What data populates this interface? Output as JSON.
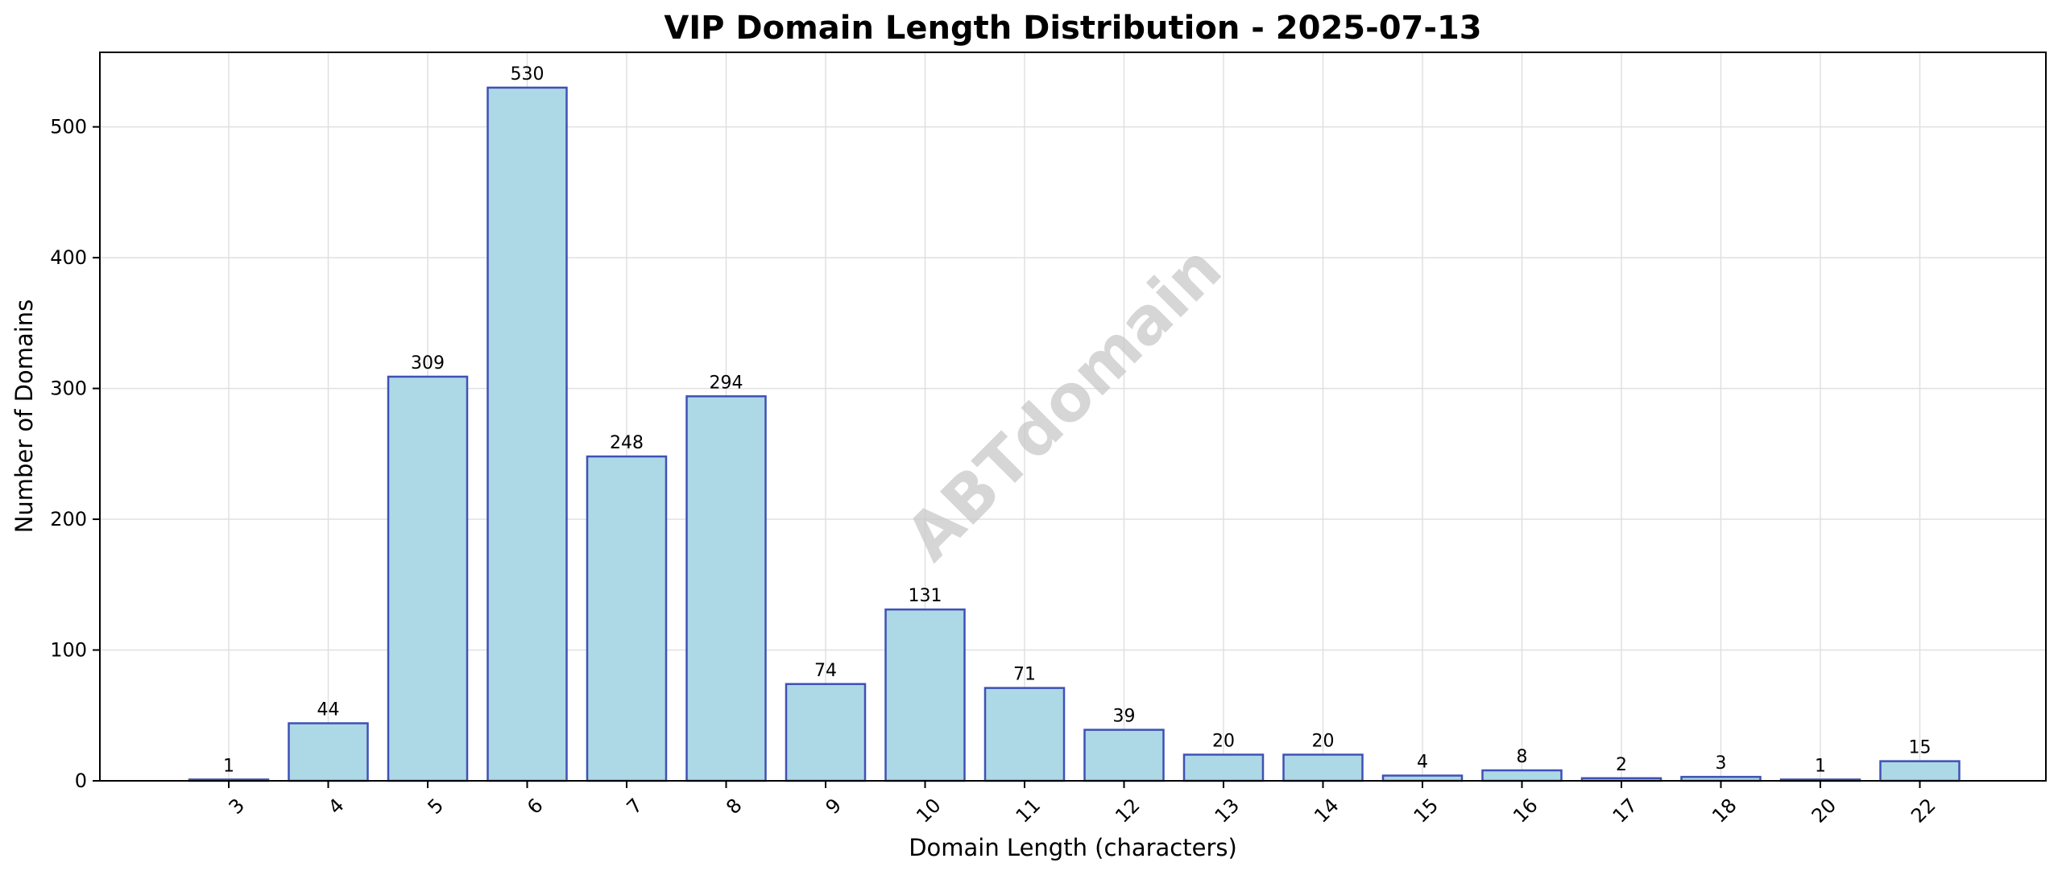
{
  "chart_data": {
    "type": "bar",
    "title": "VIP Domain Length Distribution - 2025-07-13",
    "xlabel": "Domain Length (characters)",
    "ylabel": "Number of Domains",
    "categories": [
      "3",
      "4",
      "5",
      "6",
      "7",
      "8",
      "9",
      "10",
      "11",
      "12",
      "13",
      "14",
      "15",
      "16",
      "17",
      "18",
      "20",
      "22"
    ],
    "values": [
      1,
      44,
      309,
      530,
      248,
      294,
      74,
      131,
      71,
      39,
      20,
      20,
      4,
      8,
      2,
      3,
      1,
      15
    ],
    "ylim": [
      0,
      557
    ],
    "yticks": [
      0,
      100,
      200,
      300,
      400,
      500
    ],
    "grid": true,
    "legend": "none",
    "watermark": "ABTdomain",
    "colors": {
      "bar_fill": "#add8e6",
      "bar_edge": "#3f51b5",
      "grid": "#e0e0e0",
      "watermark": "#c8c8c8"
    }
  }
}
